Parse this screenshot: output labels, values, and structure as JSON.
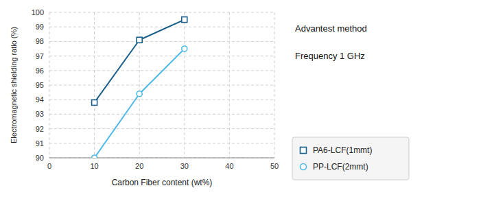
{
  "chart_data": {
    "type": "line",
    "xlabel": "Carbon Fiber content (wt%)",
    "ylabel": "Electromagnetic shielding ratio (%)",
    "x": [
      10,
      20,
      30
    ],
    "series": [
      {
        "name": "PA6-LCF(1mmt)",
        "color": "#1a5f8a",
        "marker": "square",
        "values": [
          93.8,
          98.1,
          99.5
        ]
      },
      {
        "name": "PP-LCF(2mmt)",
        "color": "#4db8e8",
        "marker": "circle",
        "values": [
          90.0,
          94.4,
          97.5
        ]
      }
    ],
    "xlim": [
      0,
      50
    ],
    "ylim": [
      90,
      100
    ],
    "xticks": [
      0,
      10,
      20,
      30,
      40,
      50
    ],
    "yticks": [
      90,
      91,
      92,
      93,
      94,
      95,
      96,
      97,
      98,
      99,
      100
    ],
    "annotations": [
      "Advantest method",
      "Frequency 1 GHz"
    ],
    "grid": true,
    "legend": "lower right"
  }
}
